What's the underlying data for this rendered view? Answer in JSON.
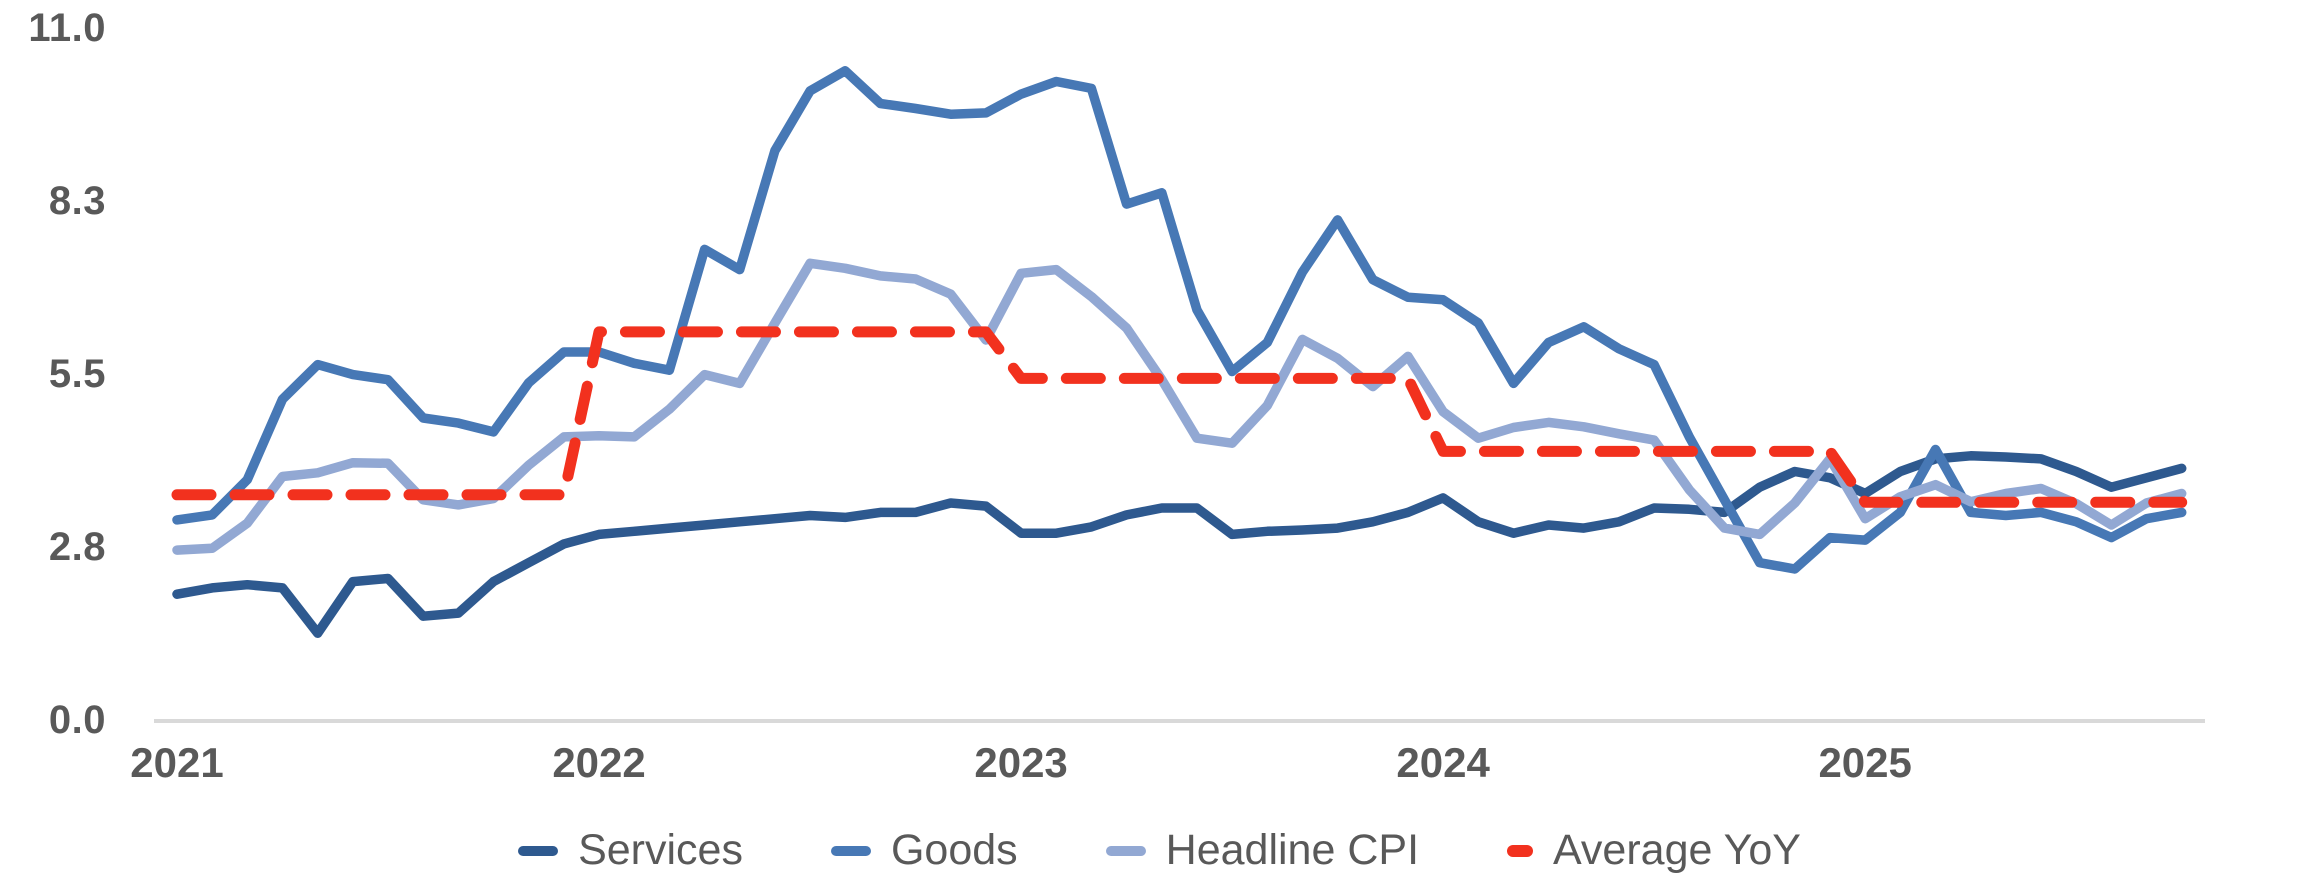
{
  "chart_data": {
    "type": "line",
    "x": [
      "2021-01",
      "2021-02",
      "2021-03",
      "2021-04",
      "2021-05",
      "2021-06",
      "2021-07",
      "2021-08",
      "2021-09",
      "2021-10",
      "2021-11",
      "2021-12",
      "2022-01",
      "2022-02",
      "2022-03",
      "2022-04",
      "2022-05",
      "2022-06",
      "2022-07",
      "2022-08",
      "2022-09",
      "2022-10",
      "2022-11",
      "2022-12",
      "2023-01",
      "2023-02",
      "2023-03",
      "2023-04",
      "2023-05",
      "2023-06",
      "2023-07",
      "2023-08",
      "2023-09",
      "2023-10",
      "2023-11",
      "2023-12",
      "2024-01",
      "2024-02",
      "2024-03",
      "2024-04",
      "2024-05",
      "2024-06",
      "2024-07",
      "2024-08",
      "2024-09",
      "2024-10",
      "2024-11",
      "2024-12",
      "2025-01",
      "2025-02",
      "2025-03",
      "2025-04",
      "2025-05",
      "2025-06",
      "2025-07",
      "2025-08",
      "2025-09",
      "2025-10"
    ],
    "series": [
      {
        "name": "Services",
        "color": "#2E598F",
        "style": "solid",
        "values": [
          2.0,
          2.1,
          2.15,
          2.1,
          1.38,
          2.2,
          2.25,
          1.65,
          1.7,
          2.2,
          2.5,
          2.8,
          2.95,
          3.0,
          3.05,
          3.1,
          3.15,
          3.2,
          3.25,
          3.22,
          3.3,
          3.3,
          3.45,
          3.4,
          2.97,
          2.97,
          3.07,
          3.26,
          3.37,
          3.37,
          2.95,
          3.0,
          3.02,
          3.05,
          3.15,
          3.3,
          3.53,
          3.15,
          2.97,
          3.1,
          3.05,
          3.15,
          3.37,
          3.35,
          3.3,
          3.7,
          3.95,
          3.85,
          3.6,
          3.95,
          4.15,
          4.2,
          4.18,
          4.15,
          3.95,
          3.7,
          3.85,
          4.0
        ]
      },
      {
        "name": "Goods",
        "color": "#4778B5",
        "style": "solid",
        "values": [
          3.18,
          3.26,
          3.82,
          5.1,
          5.65,
          5.49,
          5.41,
          4.8,
          4.72,
          4.58,
          5.36,
          5.85,
          5.85,
          5.67,
          5.56,
          7.48,
          7.16,
          9.05,
          10.0,
          10.32,
          9.8,
          9.72,
          9.63,
          9.65,
          9.95,
          10.15,
          10.04,
          8.2,
          8.38,
          6.52,
          5.54,
          6.0,
          7.12,
          7.95,
          7.0,
          6.72,
          6.68,
          6.31,
          5.35,
          6.0,
          6.25,
          5.9,
          5.65,
          4.5,
          3.5,
          2.5,
          2.4,
          2.9,
          2.86,
          3.3,
          4.3,
          3.3,
          3.25,
          3.3,
          3.15,
          2.9,
          3.2,
          3.3
        ]
      },
      {
        "name": "Headline CPI",
        "color": "#92A8D3",
        "style": "solid",
        "values": [
          2.7,
          2.73,
          3.13,
          3.87,
          3.93,
          4.09,
          4.08,
          3.5,
          3.42,
          3.52,
          4.05,
          4.5,
          4.52,
          4.5,
          4.94,
          5.49,
          5.35,
          6.31,
          7.26,
          7.18,
          7.06,
          7.01,
          6.77,
          6.04,
          7.1,
          7.16,
          6.73,
          6.23,
          5.41,
          4.48,
          4.4,
          5.0,
          6.05,
          5.75,
          5.3,
          5.78,
          4.9,
          4.48,
          4.65,
          4.73,
          4.66,
          4.55,
          4.45,
          3.66,
          3.05,
          2.95,
          3.45,
          4.15,
          3.2,
          3.55,
          3.74,
          3.47,
          3.6,
          3.68,
          3.44,
          3.1,
          3.45,
          3.6
        ]
      },
      {
        "name": "Average YoY",
        "color": "#F2311E",
        "style": "dashed",
        "values": [
          3.58,
          3.58,
          3.58,
          3.58,
          3.58,
          3.58,
          3.58,
          3.58,
          3.58,
          3.58,
          3.58,
          3.58,
          6.17,
          6.17,
          6.17,
          6.17,
          6.17,
          6.17,
          6.17,
          6.17,
          6.17,
          6.17,
          6.17,
          6.17,
          5.43,
          5.43,
          5.43,
          5.43,
          5.43,
          5.43,
          5.43,
          5.43,
          5.43,
          5.43,
          5.43,
          5.43,
          4.27,
          4.27,
          4.27,
          4.27,
          4.27,
          4.27,
          4.27,
          4.27,
          4.27,
          4.27,
          4.27,
          4.27,
          3.46,
          3.46,
          3.46,
          3.46,
          3.46,
          3.46,
          3.46,
          3.46,
          3.46,
          3.46
        ]
      }
    ],
    "y_ticks": [
      {
        "label": "0.0",
        "value": 0
      },
      {
        "label": "2.8",
        "value": 2.75
      },
      {
        "label": "5.5",
        "value": 5.5
      },
      {
        "label": "8.3",
        "value": 8.25
      },
      {
        "label": "11.0",
        "value": 11
      }
    ],
    "x_ticks": [
      {
        "label": "2021",
        "month_index": 0
      },
      {
        "label": "2022",
        "month_index": 12
      },
      {
        "label": "2023",
        "month_index": 24
      },
      {
        "label": "2024",
        "month_index": 36
      },
      {
        "label": "2025",
        "month_index": 48
      }
    ],
    "title": "",
    "xlabel": "",
    "ylabel": "",
    "ylim": [
      0,
      11
    ],
    "grid": false,
    "legend_position": "bottom",
    "axis_line_color": "#D9D9D9",
    "label_color": "#595959"
  },
  "legend": {
    "items": [
      {
        "label": "Services",
        "color": "#2E598F",
        "swatch": "line"
      },
      {
        "label": "Goods",
        "color": "#4778B5",
        "swatch": "line"
      },
      {
        "label": "Headline CPI",
        "color": "#92A8D3",
        "swatch": "line"
      },
      {
        "label": "Average YoY",
        "color": "#F2311E",
        "swatch": "dash"
      }
    ]
  }
}
